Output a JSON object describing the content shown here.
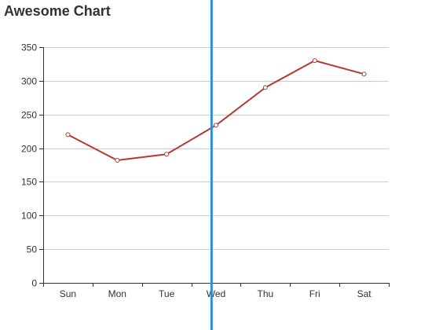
{
  "chart_data": {
    "type": "line",
    "title": "Awesome Chart",
    "xlabel": "",
    "ylabel": "",
    "categories": [
      "Sun",
      "Mon",
      "Tue",
      "Wed",
      "Thu",
      "Fri",
      "Sat"
    ],
    "series": [
      {
        "values": [
          220,
          182,
          191,
          234,
          290,
          330,
          310
        ]
      }
    ],
    "ylim": [
      0,
      350
    ],
    "yticks": [
      "0",
      "50",
      "100",
      "150",
      "200",
      "250",
      "300",
      "350"
    ],
    "grid": true,
    "line_color": "#b63a32",
    "marker_fill": "#ffffff",
    "grid_color": "#cccccc",
    "axis_color": "#333333",
    "cursor_color": "#2a8de0",
    "cursor_x": 3.41
  }
}
